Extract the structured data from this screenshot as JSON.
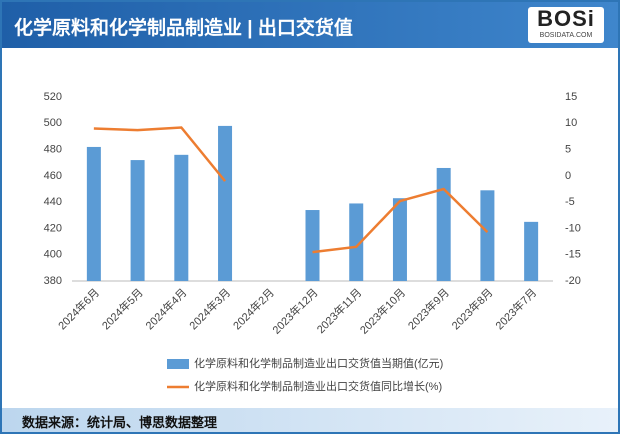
{
  "header": {
    "title": "化学原料和化学制品制造业 | 出口交货值",
    "logo": "BOSi",
    "logo_sub": "BOSIDATA.COM"
  },
  "chart_data": {
    "type": "bar-line",
    "categories": [
      "2024年6月",
      "2024年5月",
      "2024年4月",
      "2024年3月",
      "2024年2月",
      "2023年12月",
      "2023年11月",
      "2023年10月",
      "2023年9月",
      "2023年8月",
      "2023年7月"
    ],
    "series": [
      {
        "name": "化学原料和化学制品制造业出口交货值当期值(亿元)",
        "color": "#5b9bd5",
        "type": "bar",
        "values": [
          482,
          472,
          476,
          498,
          null,
          434,
          439,
          443,
          466,
          449,
          425
        ]
      },
      {
        "name": "化学原料和化学制品制造业出口交货值同比增长(%)",
        "color": "#ed7d31",
        "type": "line",
        "axis": "y2",
        "values": [
          9,
          8.7,
          9.2,
          -1,
          null,
          -14.5,
          -13.5,
          -4.8,
          -2.5,
          -10.7,
          null
        ]
      }
    ],
    "ylim": [
      380,
      520
    ],
    "yticks": [
      380,
      400,
      420,
      440,
      460,
      480,
      500,
      520
    ],
    "y2lim": [
      -20,
      15
    ],
    "y2ticks": [
      -20,
      -15,
      -10,
      -5,
      0,
      5,
      10,
      15
    ],
    "grid": false,
    "legend": "bottom"
  },
  "footer": {
    "source": "数据来源：统计局、博思数据整理"
  }
}
